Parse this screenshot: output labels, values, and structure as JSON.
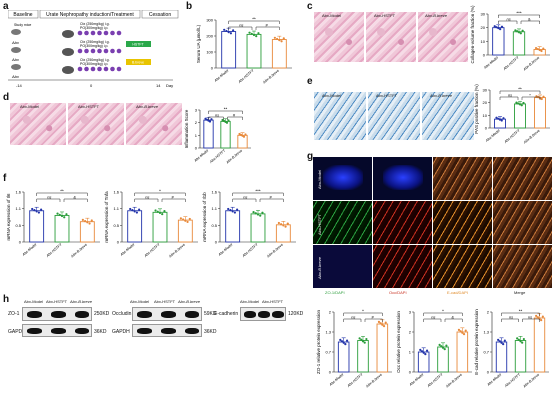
{
  "letters": [
    "a",
    "b",
    "c",
    "d",
    "e",
    "f",
    "g",
    "h"
  ],
  "a": {
    "phases": [
      "Baseline",
      "Urate Nephropathy induction/Treatment",
      "Cessation"
    ],
    "ticks": [
      "-14",
      "0",
      "14",
      "Day"
    ],
    "groups": [
      "Abx",
      "Abx",
      "Abx"
    ],
    "study_mouse": "Study mice",
    "lines": [
      [
        "Ctx (250mg/kg) i.g.",
        "PO(300mg/kg) i.p."
      ],
      [
        "Ctx (250mg/kg) i.g.",
        "PO(300mg/kg) i.p.",
        "HSTFT"
      ],
      [
        "Ctx (250mg/kg) i.g.",
        "PO(300mg/kg) i.p.",
        "B.breve"
      ]
    ],
    "colors": [
      "#7a3fb0",
      "#2aa84a",
      "#e8c400"
    ]
  },
  "groups": [
    "Abx-Model",
    "Abx-HSTFT",
    "Abx-B.breve"
  ],
  "colors": [
    "#2233aa",
    "#2a9d3a",
    "#e8893a"
  ],
  "ns": "ns",
  "hash": "#",
  "amp": "&",
  "b": {
    "ylabel": "Serum UA (μmol/L)",
    "sig": [
      "**",
      "ns",
      "#"
    ],
    "ticks": [
      "0",
      "100",
      "200",
      "300"
    ]
  },
  "c": {
    "ylabel": "Collagen-volume fraction (%)",
    "sig": [
      "***",
      "ns",
      "&"
    ],
    "ticks": [
      "0",
      "10",
      "20",
      "30"
    ]
  },
  "d": {
    "ylabel": "Inflammation Score",
    "sig": [
      "**",
      "ns",
      "#"
    ],
    "ticks": [
      "0",
      "1",
      "2",
      "3"
    ]
  },
  "e": {
    "ylabel": "PAS positive fraction (%)",
    "sig": [
      "**",
      "ns",
      "*"
    ],
    "ticks": [
      "0",
      "10",
      "20",
      "30"
    ]
  },
  "f": [
    {
      "ylabel": "mRNA expression of Il6",
      "sig": [
        "**",
        "ns",
        "&"
      ]
    },
    {
      "ylabel": "mRNA expression of Tnfa",
      "sig": [
        "*",
        "ns",
        "#"
      ]
    },
    {
      "ylabel": "mRNA expression of Il1b",
      "sig": [
        "***",
        "ns",
        "#"
      ]
    }
  ],
  "g": {
    "cols": [
      "ZO-1/DAPI",
      "Occ/DAPI",
      "E-cad/DAPI",
      "Merge"
    ]
  },
  "h": {
    "blots": [
      {
        "label": "ZO-1",
        "kd": "250KD",
        "gapdh": "GAPDH",
        "gkd": "36KD"
      },
      {
        "label": "Occludin",
        "kd": "59KD",
        "gapdh": "GAPDH",
        "gkd": "36KD"
      },
      {
        "label": "E-cadherin",
        "kd": "120KD",
        "gapdh": "GAPDH",
        "gkd": "36KD"
      }
    ],
    "charts": [
      {
        "ylabel": "ZO-1 relative protein expression",
        "sig": [
          "*",
          "ns",
          "#"
        ]
      },
      {
        "ylabel": "Occ relative protein expression",
        "sig": [
          "*",
          "ns",
          "&"
        ]
      },
      {
        "ylabel": "E-cad relative protein expression",
        "sig": [
          "**",
          "ns",
          "ns"
        ]
      }
    ]
  },
  "chart_data": [
    {
      "type": "bar",
      "panel": "b",
      "categories": [
        "Abx-Model",
        "Abx-HSTFT",
        "Abx-B.breve"
      ],
      "values": [
        228,
        210,
        178
      ],
      "ylim": [
        0,
        300
      ],
      "ylabel": "Serum UA (μmol/L)"
    },
    {
      "type": "bar",
      "panel": "c",
      "categories": [
        "Abx-Model",
        "Abx-HSTFT",
        "Abx-B.breve"
      ],
      "values": [
        20,
        17,
        4
      ],
      "ylim": [
        0,
        30
      ],
      "ylabel": "Collagen-volume fraction (%)"
    },
    {
      "type": "bar",
      "panel": "d",
      "categories": [
        "Abx-Model",
        "Abx-HSTFT",
        "Abx-B.breve"
      ],
      "values": [
        2.2,
        2.1,
        1.0
      ],
      "ylim": [
        0,
        3
      ],
      "ylabel": "Inflammation Score"
    },
    {
      "type": "bar",
      "panel": "e",
      "categories": [
        "Abx-Model",
        "Abx-HSTFT",
        "Abx-B.breve"
      ],
      "values": [
        7,
        19,
        24
      ],
      "ylim": [
        0,
        30
      ],
      "ylabel": "PAS positive fraction (%)"
    },
    {
      "type": "bar",
      "panel": "f1",
      "categories": [
        "Abx-Model",
        "Abx-HSTFT",
        "Abx-B.breve"
      ],
      "values": [
        1.0,
        0.85,
        0.65
      ],
      "ylim": [
        0,
        1.6
      ],
      "ylabel": "mRNA expression of Il6"
    },
    {
      "type": "bar",
      "panel": "f2",
      "categories": [
        "Abx-Model",
        "Abx-HSTFT",
        "Abx-B.breve"
      ],
      "values": [
        1.0,
        0.95,
        0.7
      ],
      "ylim": [
        0,
        1.6
      ],
      "ylabel": "mRNA expression of Tnfa"
    },
    {
      "type": "bar",
      "panel": "f3",
      "categories": [
        "Abx-Model",
        "Abx-HSTFT",
        "Abx-B.breve"
      ],
      "values": [
        1.0,
        0.9,
        0.55
      ],
      "ylim": [
        0,
        1.6
      ],
      "ylabel": "mRNA expression of Il1b"
    },
    {
      "type": "bar",
      "panel": "h1",
      "categories": [
        "Abx-Model",
        "Abx-HSTFT",
        "Abx-B.breve"
      ],
      "values": [
        1.0,
        1.05,
        1.6
      ],
      "ylim": [
        0,
        2
      ],
      "ylabel": "ZO-1 relative protein expression"
    },
    {
      "type": "bar",
      "panel": "h2",
      "categories": [
        "Abx-Model",
        "Abx-HSTFT",
        "Abx-B.breve"
      ],
      "values": [
        1.0,
        1.25,
        2.0
      ],
      "ylim": [
        0,
        3
      ],
      "ylabel": "Occ relative protein expression"
    },
    {
      "type": "bar",
      "panel": "h3",
      "categories": [
        "Abx-Model",
        "Abx-HSTFT",
        "Abx-B.breve"
      ],
      "values": [
        1.0,
        1.05,
        1.8
      ],
      "ylim": [
        0,
        2
      ],
      "ylabel": "E-cad relative protein expression"
    }
  ]
}
